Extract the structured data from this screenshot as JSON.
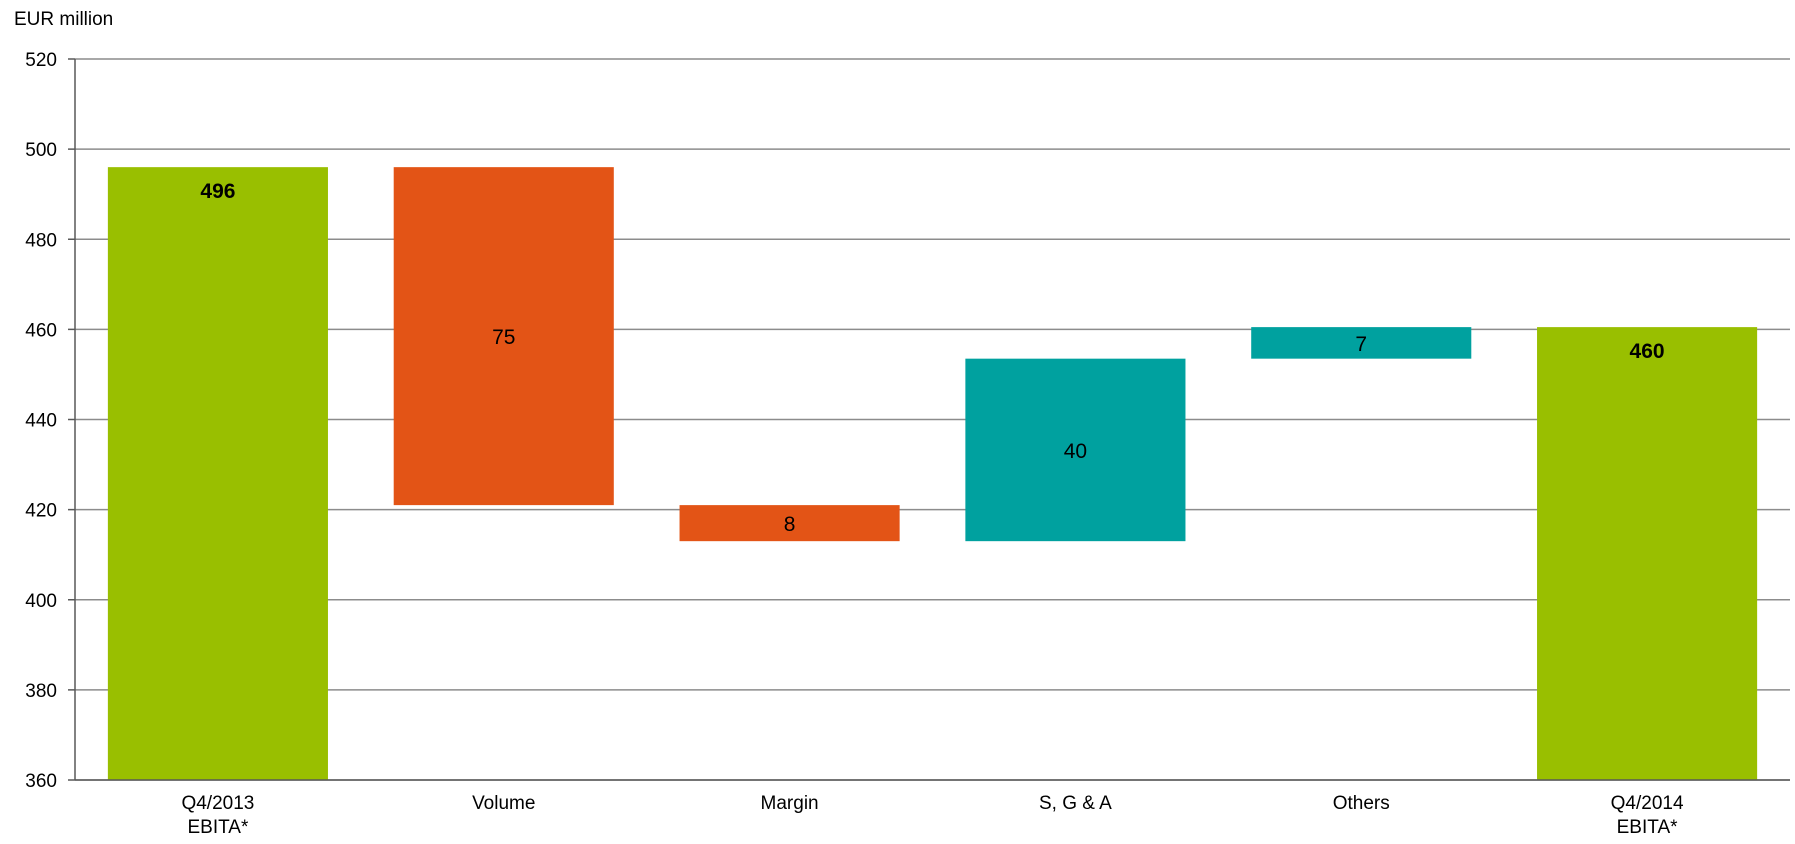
{
  "chart_data": {
    "type": "bar",
    "subtype": "waterfall",
    "ylabel": "EUR million",
    "ylim": [
      360,
      520
    ],
    "yticks": [
      360,
      380,
      400,
      420,
      440,
      460,
      480,
      500,
      520
    ],
    "grid": true,
    "categories": [
      [
        "Q4/2013",
        "EBITA*"
      ],
      [
        "Volume"
      ],
      [
        "Margin"
      ],
      [
        "S, G & A"
      ],
      [
        "Others"
      ],
      [
        "Q4/2014",
        "EBITA*"
      ]
    ],
    "bars": [
      {
        "kind": "total",
        "start": 0,
        "end": 496,
        "label": "496",
        "bold": true
      },
      {
        "kind": "decrease",
        "start": 496,
        "end": 421,
        "label": "75",
        "bold": false
      },
      {
        "kind": "decrease",
        "start": 421,
        "end": 413,
        "label": "8",
        "bold": false
      },
      {
        "kind": "increase",
        "start": 413,
        "end": 453.5,
        "label": "40",
        "bold": false
      },
      {
        "kind": "increase",
        "start": 453.5,
        "end": 460.5,
        "label": "7",
        "bold": false
      },
      {
        "kind": "total",
        "start": 0,
        "end": 460.5,
        "label": "460",
        "bold": true
      }
    ],
    "colors": {
      "total": "#99BF00",
      "decrease": "#E35416",
      "increase": "#00A19F",
      "grid": "#8C8C8C",
      "axis": "#595959"
    }
  }
}
